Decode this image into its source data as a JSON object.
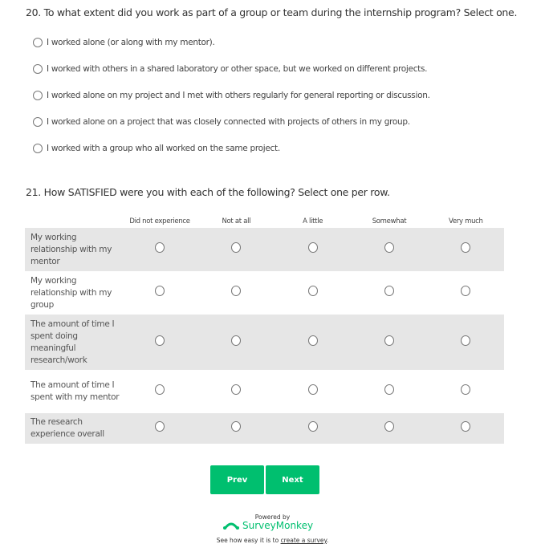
{
  "q20": {
    "title": "20. To what extent did you work as part of a group or team during the internship program? Select one.",
    "options": [
      "I worked alone (or along with my mentor).",
      "I worked with others in a shared laboratory or other space, but we worked on different projects.",
      "I worked alone on my project and I met with others regularly for general reporting or discussion.",
      "I worked alone on a project that was closely connected with projects of others in my group.",
      "I worked with a group who all worked on the same project."
    ]
  },
  "q21": {
    "title": "21. How SATISFIED were you with each of the following? Select one per row.",
    "columns": [
      "Did not experience",
      "Not at all",
      "A little",
      "Somewhat",
      "Very much"
    ],
    "rows": [
      "My working relationship with my mentor",
      "My working relationship with my group",
      "The amount of time I spent doing meaningful research/work",
      "The amount of time I spent with my mentor",
      "The research experience overall"
    ]
  },
  "nav": {
    "prev": "Prev",
    "next": "Next"
  },
  "footer": {
    "powered": "Powered by",
    "brand": "SurveyMonkey",
    "tagline": "See how easy it is to ",
    "link": "create a survey",
    "period": "."
  },
  "colors": {
    "accent": "#00bf6f",
    "row_shade": "#e6e6e6"
  }
}
